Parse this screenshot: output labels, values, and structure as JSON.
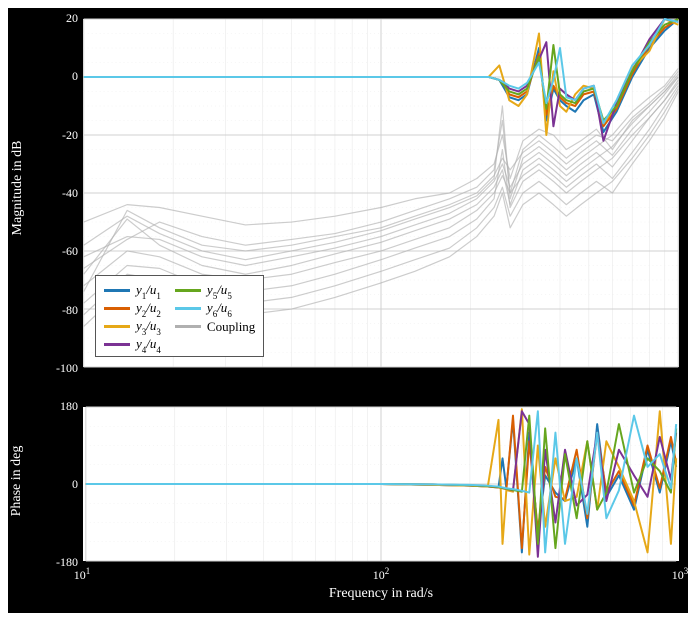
{
  "figure": {
    "bg_color": "#000000",
    "plot_bg": "#ffffff",
    "grid_color": "#d0d0d0",
    "minor_grid_color": "#ececec",
    "text_color": "#ffffff",
    "font_family": "serif",
    "axis_fontsize_pt": 14,
    "tick_fontsize_pt": 12,
    "xlabel": "Frequency in rad/s",
    "xscale": "log",
    "xlim": [
      10,
      1000
    ],
    "xticks_major": [
      10,
      100,
      1000
    ],
    "xtick_labels": [
      "10^1",
      "10^2",
      "10^3"
    ]
  },
  "magnitude_panel": {
    "ylabel": "Magnitude in dB",
    "ylim": [
      -100,
      20
    ],
    "yticks": [
      -100,
      -80,
      -60,
      -40,
      -20,
      0,
      20
    ],
    "ytick_labels": [
      "-100",
      "-80",
      "-60",
      "-40",
      "-20",
      "0",
      "20"
    ],
    "minor_grid": true,
    "line_width": 2.0,
    "coupling_color": "#b0b0b0",
    "coupling_alpha": 0.65,
    "series": [
      {
        "id": "y1u1",
        "label": "y₁/u₁",
        "color": "#1f77b4"
      },
      {
        "id": "y2u2",
        "label": "y₂/u₂",
        "color": "#d95f02"
      },
      {
        "id": "y3u3",
        "label": "y₃/u₃",
        "color": "#e6a817"
      },
      {
        "id": "y4u4",
        "label": "y₄/u₄",
        "color": "#7b3294"
      },
      {
        "id": "y5u5",
        "label": "y₅/u₅",
        "color": "#66a61e"
      },
      {
        "id": "y6u6",
        "label": "y₆/u₆",
        "color": "#5bc8e8"
      }
    ],
    "diagonal_data": {
      "shared_f": [
        10,
        20,
        40,
        80,
        120,
        160,
        200,
        230,
        250,
        260,
        270,
        290,
        310,
        340,
        360,
        380,
        400,
        420,
        450,
        480,
        520,
        560,
        620,
        700,
        800,
        900,
        1000
      ],
      "y1u1": [
        0,
        0,
        0,
        0,
        0,
        0,
        0,
        0,
        -1,
        -4,
        -7,
        -8,
        -6,
        10,
        -15,
        -4,
        -8,
        -10,
        -12,
        -8,
        -6,
        -19,
        -12,
        0,
        10,
        16,
        20
      ],
      "y2u2": [
        0,
        0,
        0,
        0,
        0,
        0,
        0,
        0,
        -1,
        -3,
        -6,
        -7,
        -5,
        8,
        -13,
        -3,
        -7,
        -9,
        -10,
        -6,
        -5,
        -17,
        -11,
        1,
        11,
        17,
        20
      ],
      "y3u3": [
        0,
        0,
        0,
        0,
        0,
        0,
        0,
        0,
        4,
        -2,
        -8,
        -10,
        -6,
        15,
        -20,
        2,
        -10,
        -12,
        -6,
        -3,
        -4,
        -16,
        -10,
        3,
        9,
        20,
        18
      ],
      "y4u4": [
        0,
        0,
        0,
        0,
        0,
        0,
        0,
        0,
        -1,
        -2,
        -4,
        -5,
        -3,
        6,
        12,
        -17,
        -4,
        -6,
        -8,
        -4,
        -3,
        -22,
        -9,
        2,
        13,
        20,
        19
      ],
      "y5u5": [
        0,
        0,
        0,
        0,
        0,
        0,
        0,
        0,
        -1,
        -3,
        -5,
        -6,
        -4,
        7,
        -11,
        11,
        -6,
        -8,
        -9,
        -5,
        -4,
        -15,
        -10,
        2,
        12,
        18,
        20
      ],
      "y6u6": [
        0,
        0,
        0,
        0,
        0,
        0,
        0,
        0,
        -1,
        -2,
        -3,
        -4,
        -2,
        5,
        -9,
        -1,
        10,
        -7,
        -8,
        -4,
        -3,
        -16,
        -8,
        4,
        11,
        20,
        19
      ]
    },
    "coupling_data": {
      "shared_f": [
        10,
        14,
        18,
        25,
        35,
        50,
        70,
        100,
        130,
        170,
        210,
        240,
        256,
        272,
        300,
        340,
        380,
        420,
        470,
        530,
        600,
        700,
        800,
        900,
        1000
      ],
      "curves": [
        [
          -50,
          -44,
          -45,
          -48,
          -51,
          -50,
          -48,
          -45,
          -42,
          -40,
          -35,
          -30,
          -20,
          -35,
          -22,
          -18,
          -20,
          -25,
          -22,
          -18,
          -25,
          -15,
          -10,
          -5,
          0
        ],
        [
          -66,
          -56,
          -50,
          -55,
          -58,
          -56,
          -54,
          -50,
          -46,
          -42,
          -38,
          -32,
          -15,
          -40,
          -25,
          -20,
          -24,
          -28,
          -24,
          -20,
          -22,
          -14,
          -9,
          -4,
          2
        ],
        [
          -74,
          -46,
          -52,
          -58,
          -60,
          -58,
          -55,
          -52,
          -48,
          -44,
          -40,
          -34,
          -28,
          -32,
          -26,
          -22,
          -26,
          -30,
          -26,
          -22,
          -27,
          -18,
          -12,
          -6,
          0
        ],
        [
          -58,
          -48,
          -54,
          -60,
          -63,
          -60,
          -57,
          -53,
          -49,
          -45,
          -41,
          -35,
          -10,
          -42,
          -28,
          -24,
          -28,
          -32,
          -28,
          -24,
          -20,
          -12,
          -7,
          -3,
          3
        ],
        [
          -62,
          -55,
          -56,
          -62,
          -65,
          -62,
          -59,
          -55,
          -51,
          -47,
          -42,
          -36,
          -30,
          -38,
          -30,
          -26,
          -30,
          -34,
          -30,
          -26,
          -31,
          -22,
          -14,
          -8,
          -2
        ],
        [
          -68,
          -49,
          -58,
          -65,
          -68,
          -65,
          -61,
          -57,
          -53,
          -49,
          -44,
          -38,
          -32,
          -44,
          -32,
          -28,
          -32,
          -36,
          -32,
          -28,
          -24,
          -16,
          -10,
          -5,
          1
        ],
        [
          -72,
          -60,
          -62,
          -68,
          -70,
          -68,
          -64,
          -60,
          -56,
          -52,
          -46,
          -40,
          -34,
          -40,
          -34,
          -30,
          -34,
          -38,
          -34,
          -30,
          -35,
          -26,
          -18,
          -10,
          -3
        ],
        [
          -78,
          -65,
          -66,
          -72,
          -74,
          -72,
          -68,
          -63,
          -59,
          -55,
          -49,
          -42,
          -25,
          -45,
          -36,
          -32,
          -36,
          -40,
          -36,
          -32,
          -28,
          -20,
          -14,
          -8,
          -1
        ],
        [
          -82,
          -68,
          -70,
          -76,
          -78,
          -76,
          -72,
          -67,
          -63,
          -59,
          -52,
          -45,
          -38,
          -48,
          -40,
          -36,
          -40,
          -44,
          -40,
          -36,
          -40,
          -30,
          -22,
          -14,
          -5
        ],
        [
          -86,
          -72,
          -74,
          -80,
          -82,
          -80,
          -76,
          -71,
          -67,
          -62,
          -55,
          -48,
          -40,
          -52,
          -44,
          -40,
          -44,
          -48,
          -44,
          -40,
          -36,
          -28,
          -20,
          -12,
          -4
        ]
      ]
    }
  },
  "phase_panel": {
    "ylabel": "Phase in deg",
    "ylim": [
      -180,
      180
    ],
    "yticks": [
      -180,
      0,
      180
    ],
    "ytick_labels": [
      "-180",
      "0",
      "180"
    ],
    "line_width": 2.0,
    "diagonal_data": {
      "shared_f": [
        10,
        50,
        100,
        150,
        200,
        230,
        250,
        258,
        266,
        280,
        300,
        318,
        340,
        360,
        390,
        420,
        460,
        500,
        540,
        580,
        640,
        720,
        800,
        880,
        960,
        1000
      ],
      "y1u1": [
        0,
        0,
        0,
        -2,
        -4,
        -6,
        -8,
        60,
        -10,
        150,
        -160,
        120,
        -120,
        20,
        -20,
        -40,
        60,
        -100,
        140,
        -30,
        20,
        -60,
        80,
        -20,
        100,
        40
      ],
      "y2u2": [
        0,
        0,
        0,
        -2,
        -4,
        -6,
        -8,
        -10,
        -12,
        160,
        -150,
        100,
        -110,
        40,
        -30,
        -35,
        80,
        -80,
        120,
        -20,
        30,
        -50,
        90,
        -10,
        110,
        50
      ],
      "y3u3": [
        0,
        0,
        0,
        -2,
        -4,
        -6,
        150,
        -140,
        -14,
        -18,
        175,
        -165,
        90,
        -100,
        60,
        -40,
        -30,
        100,
        -60,
        100,
        40,
        -40,
        -160,
        170,
        -140,
        60
      ],
      "y4u4": [
        0,
        0,
        0,
        -1,
        -3,
        -5,
        -7,
        -9,
        -11,
        -15,
        170,
        140,
        -170,
        80,
        -90,
        80,
        -50,
        -25,
        120,
        -40,
        80,
        20,
        -30,
        110,
        10,
        120
      ],
      "y5u5": [
        0,
        0,
        0,
        -1,
        -3,
        -5,
        -7,
        -9,
        -11,
        -14,
        -18,
        160,
        -140,
        130,
        -150,
        70,
        -80,
        100,
        -60,
        -20,
        140,
        -20,
        60,
        30,
        -20,
        130
      ],
      "y6u6": [
        0,
        0,
        0,
        -1,
        -2,
        -4,
        -6,
        -8,
        -10,
        -12,
        -16,
        -20,
        170,
        -160,
        120,
        -140,
        60,
        -70,
        120,
        -80,
        -15,
        160,
        40,
        70,
        -10,
        140
      ]
    }
  },
  "legend": {
    "position": "inside_mag_bottom_left",
    "border_color": "#555555",
    "bg_color": "#ffffff",
    "fontsize_pt": 13,
    "font_style": "italic",
    "columns": 2,
    "items_col1": [
      {
        "label_html": "y<sub>1</sub>/u<sub>1</sub>",
        "color": "#1f77b4"
      },
      {
        "label_html": "y<sub>2</sub>/u<sub>2</sub>",
        "color": "#d95f02"
      },
      {
        "label_html": "y<sub>3</sub>/u<sub>3</sub>",
        "color": "#e6a817"
      },
      {
        "label_html": "y<sub>4</sub>/u<sub>4</sub>",
        "color": "#7b3294"
      }
    ],
    "items_col2": [
      {
        "label_html": "y<sub>5</sub>/u<sub>5</sub>",
        "color": "#66a61e"
      },
      {
        "label_html": "y<sub>6</sub>/u<sub>6</sub>",
        "color": "#5bc8e8"
      },
      {
        "label_html": "Coupling",
        "color": "#b0b0b0",
        "roman": true
      }
    ]
  }
}
